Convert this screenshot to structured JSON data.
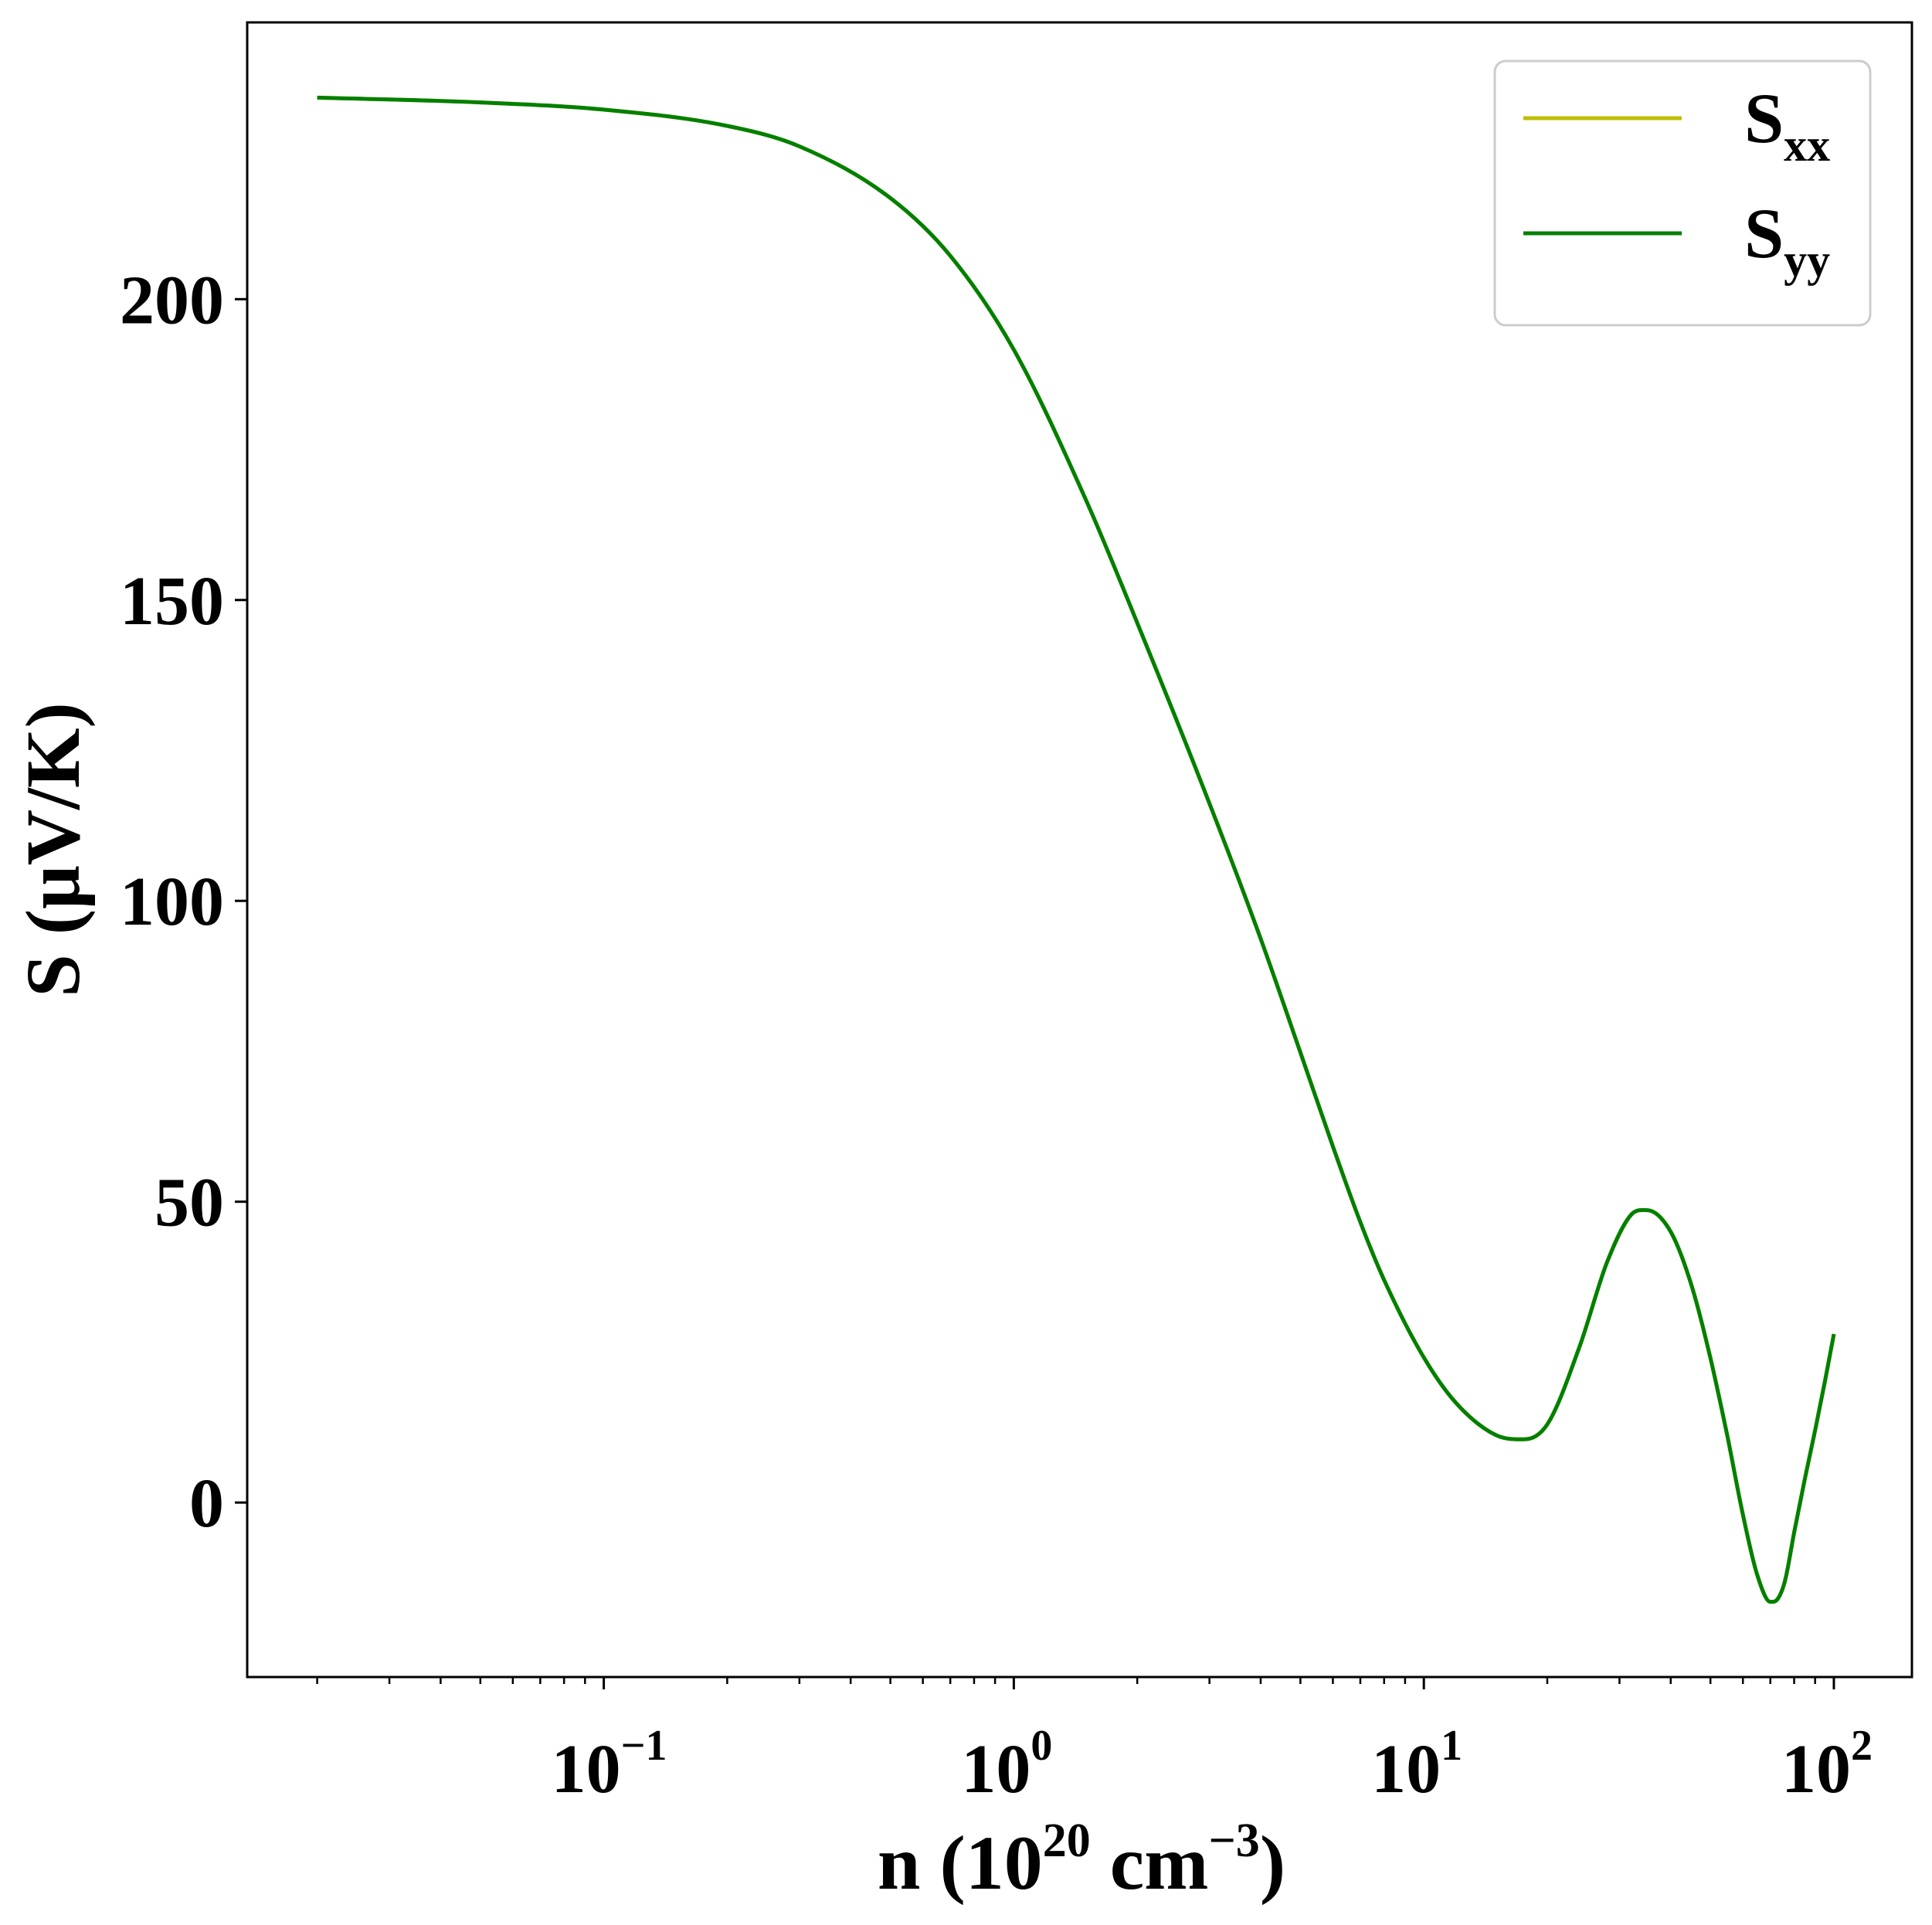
{
  "chart_data": {
    "type": "line",
    "xscale": "log",
    "xlim": [
      0.0135,
      155
    ],
    "ylim": [
      -29,
      246
    ],
    "x_ticks": [
      {
        "value": 0.1,
        "base": "10",
        "exp": "−1"
      },
      {
        "value": 1,
        "base": "10",
        "exp": "0"
      },
      {
        "value": 10,
        "base": "10",
        "exp": "1"
      },
      {
        "value": 100,
        "base": "10",
        "exp": "2"
      }
    ],
    "y_ticks": [
      {
        "value": 0,
        "label": "0"
      },
      {
        "value": 50,
        "label": "50"
      },
      {
        "value": 100,
        "label": "100"
      },
      {
        "value": 150,
        "label": "150"
      },
      {
        "value": 200,
        "label": "200"
      }
    ],
    "xlabel": {
      "main": "n (10",
      "sup1": "20",
      "mid": " cm",
      "sup2": "−3",
      "end": ")"
    },
    "ylabel": "S (μV/K)",
    "legend_position": "upper right",
    "grid": false,
    "series": [
      {
        "name": "S",
        "sub": "xx",
        "color": "#bfbf00",
        "x": [
          0.02,
          0.05,
          0.1,
          0.2,
          0.3,
          0.5,
          0.7,
          1,
          1.5,
          2,
          3,
          4,
          5,
          6,
          7,
          8,
          10,
          12,
          15,
          17.5,
          20,
          24,
          28,
          32,
          35,
          40,
          45,
          50,
          55,
          60,
          65,
          70,
          73,
          76,
          80,
          85,
          90,
          95,
          100
        ],
        "y": [
          233.5,
          232.7,
          231.5,
          228.8,
          225.4,
          216.8,
          207.2,
          191.6,
          166.6,
          146.2,
          116.2,
          93.7,
          74.8,
          59.2,
          46.6,
          37.0,
          24.1,
          16.5,
          11.2,
          10.5,
          13.0,
          26.0,
          40.0,
          47.8,
          48.6,
          45.0,
          36.0,
          24.0,
          11.0,
          -2.0,
          -12.0,
          -16.5,
          -16.0,
          -13.0,
          -5.0,
          4.0,
          12.0,
          20.0,
          28.0
        ]
      },
      {
        "name": "S",
        "sub": "yy",
        "color": "#008000",
        "x": [
          0.02,
          0.05,
          0.1,
          0.2,
          0.3,
          0.5,
          0.7,
          1,
          1.5,
          2,
          3,
          4,
          5,
          6,
          7,
          8,
          10,
          12,
          15,
          17.5,
          20,
          24,
          28,
          32,
          35,
          40,
          45,
          50,
          55,
          60,
          65,
          70,
          73,
          76,
          80,
          85,
          90,
          95,
          100
        ],
        "y": [
          233.5,
          232.7,
          231.5,
          228.8,
          225.4,
          216.8,
          207.2,
          191.6,
          166.6,
          146.2,
          116.2,
          93.7,
          74.8,
          59.2,
          46.6,
          37.0,
          24.1,
          16.5,
          11.2,
          10.5,
          13.0,
          26.0,
          40.0,
          47.8,
          48.6,
          45.0,
          36.0,
          24.0,
          11.0,
          -2.0,
          -12.0,
          -16.5,
          -16.0,
          -13.0,
          -5.0,
          4.0,
          12.0,
          20.0,
          28.0
        ]
      }
    ]
  }
}
